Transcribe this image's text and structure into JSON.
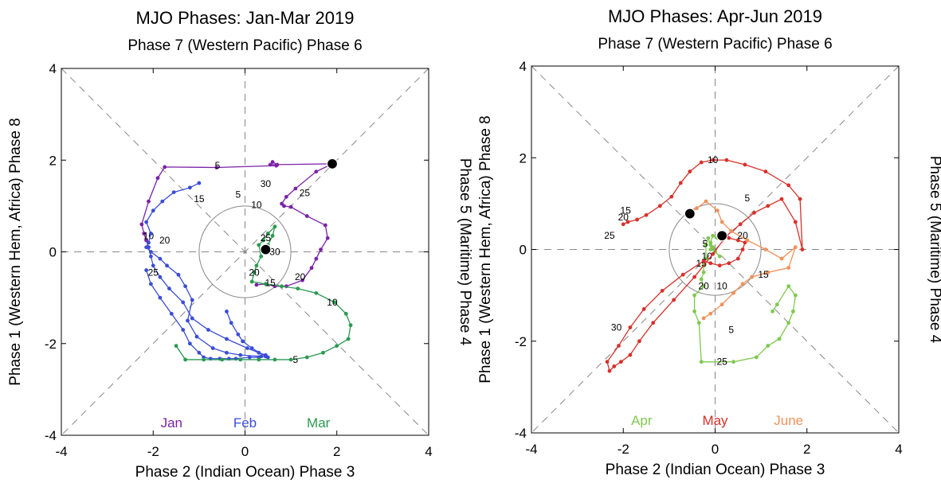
{
  "chart_data": [
    {
      "type": "line",
      "title": "MJO Phases: Jan-Mar 2019",
      "top_label": "Phase 7 (Western Pacific) Phase 6",
      "xlabel": "Phase 2 (Indian Ocean) Phase 3",
      "ylabel_left": "Phase 1 (Western Hem, Africa) Phase 8",
      "ylabel_right": "Phase 5 (Maritime) Phase 4",
      "xlim": [
        -4,
        4
      ],
      "ylim": [
        -4,
        4
      ],
      "xticks": [
        "-4",
        "-2",
        "0",
        "2",
        "4"
      ],
      "yticks": [
        "-4",
        "-2",
        "0",
        "2",
        "4"
      ],
      "unit_circle_radius": 1,
      "series": [
        {
          "name": "Jan",
          "color": "#7a22a8",
          "x": [
            1.9,
            0.55,
            0.6,
            0.7,
            0.68,
            -0.62,
            -1.75,
            -1.9,
            -2.1,
            -2.25,
            -2.2,
            -2.15,
            -2.1
          ],
          "y": [
            1.92,
            1.9,
            1.96,
            1.9,
            1.88,
            1.84,
            1.85,
            1.61,
            1.1,
            0.6,
            0.4,
            0.25,
            0.1
          ],
          "day_labels": [
            {
              "text": "5",
              "x": -0.6,
              "y": 1.88
            },
            {
              "text": "10",
              "x": -2.1,
              "y": 0.35
            }
          ],
          "tail": {
            "color": "#7a22a8",
            "x": [
              1.9,
              1.55,
              1.1,
              0.9,
              0.8,
              0.85,
              1.0,
              1.35,
              1.75,
              1.8,
              1.65,
              1.55,
              1.45,
              1.25,
              0.9,
              0.65,
              0.45,
              0.25
            ],
            "y": [
              1.92,
              1.75,
              1.38,
              1.2,
              1.05,
              1.0,
              0.98,
              0.78,
              0.58,
              0.3,
              0.05,
              -0.15,
              -0.35,
              -0.62,
              -0.75,
              -0.75,
              -0.7,
              -0.72
            ],
            "day_labels": [
              {
                "text": "25",
                "x": 1.3,
                "y": 1.28
              },
              {
                "text": "20",
                "x": 1.2,
                "y": -0.55
              }
            ]
          }
        },
        {
          "name": "Feb",
          "color": "#3a4dd6",
          "x": [
            -2.1,
            -2.05,
            -2.0,
            -1.85,
            -1.65,
            -1.35,
            -1.15,
            -0.8,
            -0.4,
            0.05,
            0.3,
            0.45,
            0.5,
            0.35,
            -0.1,
            -0.4,
            -0.7,
            -1.05,
            -1.25,
            -1.15,
            -1.3,
            -1.45,
            -1.7,
            -1.85,
            -2.05,
            -2.15,
            -2.1,
            -2.05,
            -2.15,
            -2.0,
            -1.8,
            -1.55,
            -1.2,
            -1.0
          ],
          "y": [
            0.1,
            -0.1,
            -0.3,
            -0.55,
            -0.8,
            -1.1,
            -1.45,
            -1.7,
            -1.9,
            -2.1,
            -2.2,
            -2.25,
            -2.3,
            -2.28,
            -2.25,
            -2.2,
            -2.1,
            -1.85,
            -1.5,
            -1.05,
            -0.75,
            -0.5,
            -0.3,
            -0.15,
            0.0,
            0.1,
            0.2,
            0.4,
            0.65,
            0.9,
            1.1,
            1.3,
            1.4,
            1.5
          ],
          "path_hint": "main",
          "x2": [
            -2.15,
            -2.05,
            -1.85,
            -1.6,
            -1.35,
            -1.2,
            -1.0,
            -0.9,
            -0.75,
            -0.55,
            -0.35,
            -0.2,
            0.1,
            0.3,
            0.45,
            0.15,
            -0.05,
            -0.15,
            -0.3,
            -0.4
          ],
          "y2": [
            -0.4,
            -0.7,
            -1.0,
            -1.35,
            -1.7,
            -2.0,
            -2.2,
            -2.3,
            -2.33,
            -2.33,
            -2.33,
            -2.33,
            -2.3,
            -2.3,
            -2.28,
            -2.1,
            -1.95,
            -1.8,
            -1.55,
            -1.3
          ],
          "day_labels": [
            {
              "text": "15",
              "x": -1.0,
              "y": 1.15
            },
            {
              "text": "5",
              "x": -0.15,
              "y": 1.25
            },
            {
              "text": "10",
              "x": 0.25,
              "y": 1.02
            },
            {
              "text": "30",
              "x": 0.45,
              "y": 1.48
            },
            {
              "text": "20",
              "x": -1.75,
              "y": 0.25
            },
            {
              "text": "25",
              "x": -2.0,
              "y": -0.45
            }
          ]
        },
        {
          "name": "Mar",
          "color": "#2a9a50",
          "x": [
            0.45,
            0.5,
            0.6,
            0.65,
            0.5,
            0.4,
            0.3,
            0.35,
            0.25,
            0.2,
            0.15,
            0.45,
            0.8,
            1.15,
            1.55,
            1.95,
            2.2,
            2.3,
            2.25,
            2.0,
            1.7,
            1.35,
            1.0,
            0.65,
            0.3,
            -0.1,
            -0.5,
            -0.9,
            -1.3,
            -1.5
          ],
          "y": [
            0.05,
            0.15,
            0.35,
            0.55,
            0.4,
            0.25,
            0.15,
            -0.1,
            -0.3,
            -0.45,
            -0.65,
            -0.7,
            -0.75,
            -0.8,
            -0.9,
            -1.1,
            -1.35,
            -1.6,
            -1.9,
            -2.05,
            -2.2,
            -2.3,
            -2.35,
            -2.35,
            -2.35,
            -2.35,
            -2.35,
            -2.35,
            -2.35,
            -2.05
          ],
          "day_labels": [
            {
              "text": "25",
              "x": 0.45,
              "y": 0.3
            },
            {
              "text": "30",
              "x": 0.65,
              "y": 0.0
            },
            {
              "text": "20",
              "x": 0.2,
              "y": -0.45
            },
            {
              "text": "15",
              "x": 0.55,
              "y": -0.68
            },
            {
              "text": "10",
              "x": 1.9,
              "y": -1.1
            },
            {
              "text": "5",
              "x": 1.1,
              "y": -2.35
            }
          ]
        }
      ],
      "end_marker": {
        "x": 0.45,
        "y": 0.05
      },
      "start_marker": {
        "x": 1.9,
        "y": 1.92
      },
      "legend": [
        {
          "text": "Jan",
          "color": "#7a22a8"
        },
        {
          "text": "Feb",
          "color": "#3a4dd6"
        },
        {
          "text": "Mar",
          "color": "#2a9a50"
        }
      ]
    },
    {
      "type": "line",
      "title": "MJO Phases: Apr-Jun 2019",
      "top_label": "Phase 7 (Western Pacific) Phase 6",
      "xlabel": "Phase 2 (Indian Ocean) Phase 3",
      "ylabel_left": "Phase 1 (Western Hem, Africa) Phase 8",
      "ylabel_right": "Phase 5 (Maritime) Phase 4",
      "xlim": [
        -4,
        4
      ],
      "ylim": [
        -4,
        4
      ],
      "xticks": [
        "-4",
        "-2",
        "0",
        "2",
        "4"
      ],
      "yticks": [
        "-4",
        "-2",
        "0",
        "2",
        "4"
      ],
      "unit_circle_radius": 1,
      "series": [
        {
          "name": "Apr",
          "color": "#7fc94f",
          "x": [
            0.15,
            0.05,
            -0.05,
            -0.1,
            -0.05,
            0.0,
            0.1,
            0.0,
            -0.1,
            -0.1,
            -0.15,
            -0.2,
            -0.2,
            -0.25,
            -0.25,
            -0.3,
            -0.25,
            -0.45,
            -0.45,
            -0.35,
            -0.3,
            0.4,
            0.9,
            1.15,
            1.4,
            1.6,
            1.7,
            1.75,
            1.6,
            1.35,
            1.25
          ],
          "y": [
            0.3,
            0.25,
            0.3,
            0.15,
            0.05,
            -0.05,
            -0.15,
            -0.05,
            0.0,
            0.1,
            0.25,
            0.1,
            -0.2,
            -0.35,
            -0.5,
            -0.65,
            -0.8,
            -1.0,
            -1.35,
            -1.6,
            -2.45,
            -2.45,
            -2.35,
            -2.1,
            -1.95,
            -1.6,
            -1.35,
            -1.0,
            -0.8,
            -1.2,
            -1.35
          ],
          "day_labels": [
            {
              "text": "5",
              "x": -0.22,
              "y": 0.12
            },
            {
              "text": "10",
              "x": -0.18,
              "y": -0.15
            },
            {
              "text": "15",
              "x": -0.3,
              "y": -0.3
            },
            {
              "text": "20",
              "x": -0.25,
              "y": -0.8
            },
            {
              "text": "25",
              "x": 0.15,
              "y": -2.45
            }
          ]
        },
        {
          "name": "May",
          "color": "#d8302a",
          "x": [
            0.15,
            0.3,
            0.5,
            0.65,
            0.6,
            0.5,
            0.3,
            0.1,
            -0.1,
            -0.25,
            -0.7,
            -1.15,
            -1.55,
            -1.85,
            -2.1,
            -2.35,
            -2.3,
            -2.2,
            -2.05,
            -1.85,
            -1.65,
            -1.35,
            -0.9,
            -0.45,
            -0.05,
            0.25,
            0.55,
            0.85,
            1.15,
            1.45,
            1.75,
            1.9,
            1.85,
            1.6,
            1.1,
            0.65,
            0.25,
            -0.05,
            -0.3,
            -0.55,
            -0.75,
            -0.95,
            -1.2,
            -1.5,
            -1.7,
            -1.9,
            -2.0
          ],
          "y": [
            0.3,
            0.25,
            0.2,
            0.15,
            0.0,
            -0.2,
            -0.3,
            -0.35,
            -0.3,
            -0.25,
            -0.55,
            -0.9,
            -1.3,
            -1.7,
            -2.1,
            -2.45,
            -2.65,
            -2.55,
            -2.45,
            -2.3,
            -2.0,
            -1.6,
            -1.1,
            -0.6,
            -0.1,
            0.3,
            0.55,
            0.8,
            0.95,
            1.1,
            0.6,
            0.0,
            1.1,
            1.4,
            1.7,
            1.85,
            1.95,
            1.95,
            1.9,
            1.7,
            1.45,
            1.15,
            0.95,
            0.75,
            0.65,
            0.6,
            0.55
          ],
          "day_labels": [
            {
              "text": "10",
              "x": -0.05,
              "y": 1.95
            },
            {
              "text": "5",
              "x": 0.7,
              "y": 1.12
            },
            {
              "text": "15",
              "x": -1.95,
              "y": 0.85
            },
            {
              "text": "20",
              "x": -2.0,
              "y": 0.7
            },
            {
              "text": "25",
              "x": -2.3,
              "y": 0.3
            },
            {
              "text": "30",
              "x": -2.15,
              "y": -1.7
            }
          ]
        },
        {
          "name": "June",
          "color": "#f2915a",
          "x": [
            -0.55,
            -0.4,
            -0.2,
            0.05,
            0.15,
            0.35,
            0.7,
            1.1,
            1.45,
            1.75,
            1.6,
            1.15,
            0.8,
            0.6,
            0.4,
            0.15,
            -0.1,
            -0.25
          ],
          "y": [
            0.78,
            0.9,
            1.05,
            0.85,
            0.6,
            0.4,
            0.2,
            0.0,
            -0.2,
            0.05,
            -0.4,
            -0.5,
            -0.6,
            -0.75,
            -0.95,
            -1.2,
            -1.4,
            -1.5
          ],
          "day_labels": [
            {
              "text": "20",
              "x": 0.6,
              "y": 0.3
            },
            {
              "text": "15",
              "x": 1.05,
              "y": -0.55
            },
            {
              "text": "10",
              "x": 0.15,
              "y": -0.8
            },
            {
              "text": "5",
              "x": 0.35,
              "y": -1.75
            }
          ]
        }
      ],
      "start_marker": {
        "x": -0.55,
        "y": 0.78
      },
      "end_marker": {
        "x": 0.15,
        "y": 0.3
      },
      "legend": [
        {
          "text": "Apr",
          "color": "#7fc94f"
        },
        {
          "text": "May",
          "color": "#d8302a"
        },
        {
          "text": "June",
          "color": "#f2915a"
        }
      ]
    }
  ]
}
